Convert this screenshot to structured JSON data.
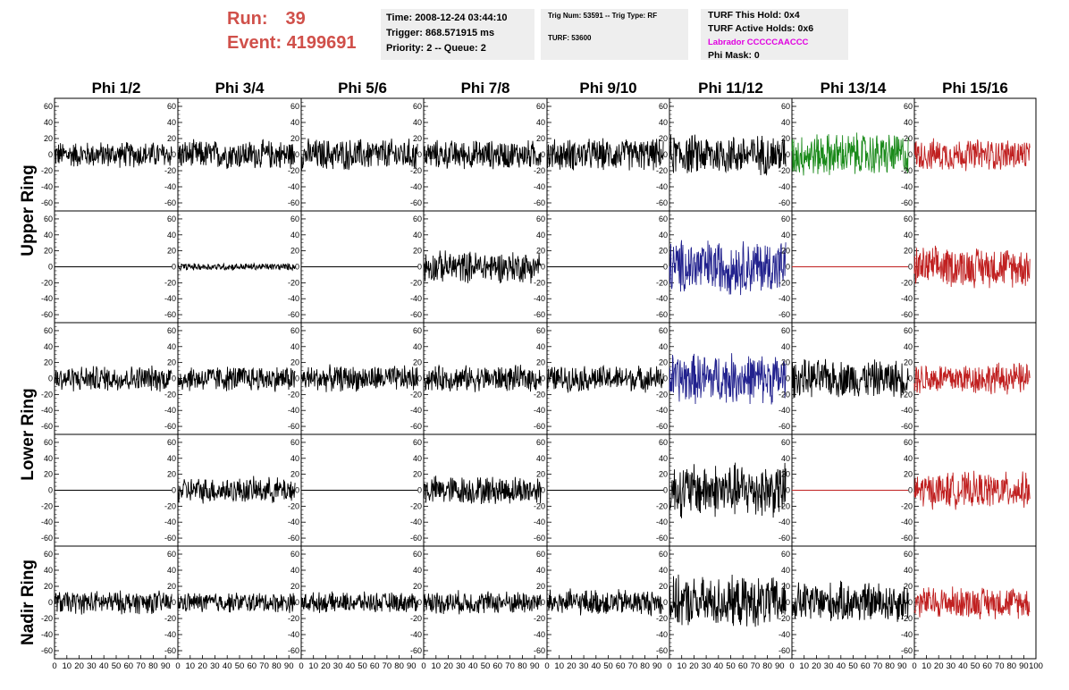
{
  "header": {
    "run_label": "Run:",
    "run_value": "39",
    "event_label": "Event:",
    "event_value": "4199691",
    "time_text": "Time: 2008-12-24 03:44:10",
    "trigger_text": "Trigger: 868.571915 ms",
    "priority_text": "Priority: 2 -- Queue: 2",
    "trig_num_text": "Trig Num: 53591 -- Trig Type: RF",
    "turf_text": "TURF: 53600",
    "turf_this_hold": "TURF This Hold: 0x4",
    "turf_active_holds": "TURF Active Holds: 0x6",
    "labrador_text": "Labrador CCCCCAACCC",
    "phi_mask_text": "Phi Mask: 0"
  },
  "columns": [
    "Phi 1/2",
    "Phi 3/4",
    "Phi 5/6",
    "Phi 7/8",
    "Phi 9/10",
    "Phi 11/12",
    "Phi 13/14",
    "Phi 15/16"
  ],
  "rings": [
    "Upper Ring",
    "Lower Ring",
    "Nadir Ring"
  ],
  "axes": {
    "y_ticks": [
      "60",
      "40",
      "20",
      "0",
      "-20",
      "-40",
      "-60"
    ],
    "x_ticks": [
      "0",
      "10",
      "20",
      "30",
      "40",
      "50",
      "60",
      "70",
      "80",
      "90",
      "100"
    ],
    "y_range": [
      -70,
      70
    ],
    "x_range": [
      0,
      100
    ]
  },
  "colors": {
    "run_text": "#d0504a",
    "labrador_text": "#e000e0",
    "trace_black": "#000000",
    "trace_green": "#1a8a1a",
    "trace_blue": "#22228e",
    "trace_red": "#c02020"
  },
  "chart_data": {
    "type": "line",
    "note_rows": [
      "upper-ring-1",
      "upper-ring-2",
      "lower-ring-1",
      "lower-ring-2",
      "nadir-ring"
    ],
    "trace_amplitude": [
      [
        18,
        20,
        22,
        20,
        22,
        28,
        30,
        22
      ],
      [
        0,
        5,
        0,
        22,
        0,
        38,
        0,
        28
      ],
      [
        18,
        18,
        18,
        18,
        18,
        35,
        26,
        22
      ],
      [
        0,
        18,
        0,
        20,
        0,
        38,
        0,
        25
      ],
      [
        16,
        14,
        14,
        16,
        18,
        35,
        28,
        22
      ]
    ],
    "trace_color": [
      [
        "trace_black",
        "trace_black",
        "trace_black",
        "trace_black",
        "trace_black",
        "trace_black",
        "trace_green",
        "trace_red"
      ],
      [
        "trace_black",
        "trace_black",
        "trace_black",
        "trace_black",
        "trace_black",
        "trace_blue",
        "trace_red",
        "trace_red"
      ],
      [
        "trace_black",
        "trace_black",
        "trace_black",
        "trace_black",
        "trace_black",
        "trace_blue",
        "trace_black",
        "trace_red"
      ],
      [
        "trace_black",
        "trace_black",
        "trace_black",
        "trace_black",
        "trace_black",
        "trace_black",
        "trace_red",
        "trace_red"
      ],
      [
        "trace_black",
        "trace_black",
        "trace_black",
        "trace_black",
        "trace_black",
        "trace_black",
        "trace_black",
        "trace_red"
      ]
    ]
  }
}
